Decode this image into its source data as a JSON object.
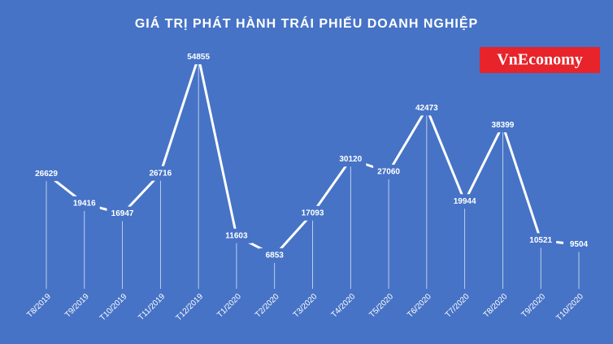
{
  "chart_data": {
    "type": "line",
    "title": "GIÁ TRỊ PHÁT HÀNH TRÁI PHIẾU DOANH NGHIỆP",
    "logo": "VnEconomy",
    "categories": [
      "T8/2019",
      "T9/2019",
      "T10/2019",
      "T11/2019",
      "T12/2019",
      "T1/2020",
      "T2/2020",
      "T3/2020",
      "T4/2020",
      "T5/2020",
      "T6/2020",
      "T7/2020",
      "T8/2020",
      "T9/2020",
      "T10/2020"
    ],
    "values": [
      26629,
      19416,
      16947,
      26716,
      54855,
      11603,
      6853,
      17093,
      30120,
      27060,
      42473,
      19944,
      38399,
      10521,
      9504
    ],
    "color": "#ffffff",
    "ylim": [
      0,
      60000
    ],
    "grid": false
  }
}
